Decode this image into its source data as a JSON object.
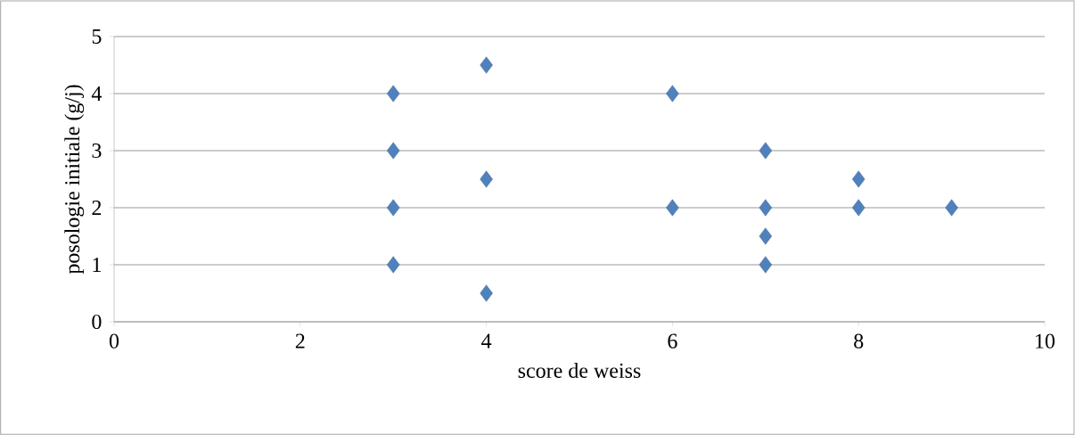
{
  "chart_data": {
    "type": "scatter",
    "xlabel": "score de weiss",
    "ylabel": "posologie initiale (g/j)",
    "x": [
      3,
      3,
      3,
      3,
      4,
      4,
      4,
      6,
      6,
      7,
      7,
      7,
      7,
      8,
      8,
      9
    ],
    "values": [
      4,
      3,
      2,
      1,
      4.5,
      2.5,
      0.5,
      4,
      2,
      3,
      2,
      1.5,
      1,
      2.5,
      2,
      2
    ],
    "color": "#4f81bd",
    "marker": "diamond",
    "xlim": [
      0,
      10
    ],
    "ylim": [
      0,
      5
    ],
    "xticks": [
      0,
      2,
      4,
      6,
      8,
      10
    ],
    "yticks": [
      0,
      1,
      2,
      3,
      4,
      5
    ],
    "grid": "y"
  }
}
